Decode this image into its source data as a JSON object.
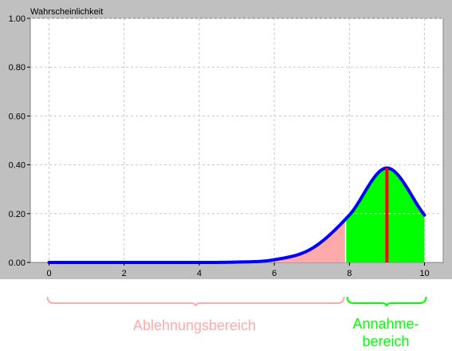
{
  "chart_data": {
    "type": "area",
    "ylabel": "Wahrscheinlichkeit",
    "xlim": [
      -0.5,
      10.5
    ],
    "ylim": [
      0,
      1.0
    ],
    "x_ticks": [
      0,
      2,
      4,
      6,
      8,
      10
    ],
    "x_tick_labels": [
      "0",
      "2",
      "4",
      "6",
      "8",
      "10"
    ],
    "y_ticks": [
      0,
      0.2,
      0.4,
      0.6,
      0.8,
      1.0
    ],
    "y_tick_labels": [
      "0.00",
      "0.20",
      "0.40",
      "0.60",
      "0.80",
      "1.00"
    ],
    "grid": true,
    "series": [
      {
        "type": "line",
        "x": [
          0,
          1,
          2,
          3,
          4,
          5,
          6,
          7,
          8,
          9,
          10
        ],
        "y": [
          0.0,
          0.0,
          0.0,
          0.0,
          0.0,
          0.0015,
          0.011,
          0.057,
          0.194,
          0.387,
          0.194
        ]
      }
    ],
    "rejection_region": {
      "from": 0,
      "to": 7.9,
      "color": "#ffaaaa"
    },
    "acceptance_region": {
      "from": 7.9,
      "to": 10,
      "color": "#00ff00"
    },
    "marker": {
      "x": 9,
      "y": 0.387,
      "color": "#ff0000"
    },
    "colors": {
      "frame": "#c0c0c0",
      "plot_background": "#ffffff",
      "curve": "#0000ff",
      "grid": "#c8c8c8"
    }
  },
  "annotations": {
    "rejection_label": "Ablehnungsbereich",
    "acceptance_label_line1": "Annahme-",
    "acceptance_label_line2": "bereich",
    "rejection_color": "#ffaaaa",
    "acceptance_color": "#00ff00"
  }
}
